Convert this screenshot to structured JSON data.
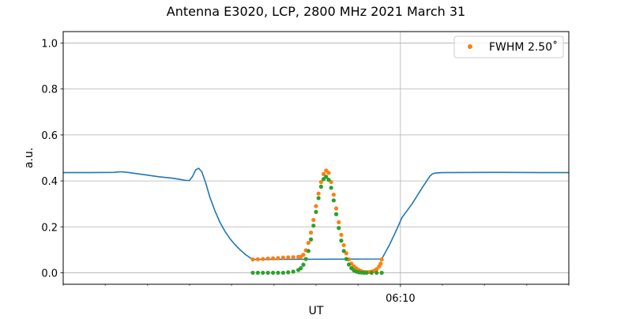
{
  "chart_data": {
    "type": "line",
    "title": "Antenna E3020, LCP, 2800 MHz 2021 March 31",
    "xlabel": "UT",
    "ylabel": "a.u.",
    "xlim": [
      0,
      1
    ],
    "ylim": [
      -0.05,
      1.05
    ],
    "grid": true,
    "legend_position": "top-right",
    "y_ticks": [
      0.0,
      0.2,
      0.4,
      0.6,
      0.8,
      1.0
    ],
    "y_tick_labels": [
      "0.0",
      "0.2",
      "0.4",
      "0.6",
      "0.8",
      "1.0"
    ],
    "x_major_ticks": [
      {
        "x": 0.667,
        "label": "06:10"
      }
    ],
    "x_minor_ticks": [
      0.0,
      0.083,
      0.167,
      0.25,
      0.333,
      0.417,
      0.5,
      0.583,
      0.75,
      0.833,
      0.917,
      1.0
    ],
    "colors": {
      "blue": "#1f77b4",
      "orange": "#ff7f0e",
      "green": "#2ca02c",
      "grid": "#b0b0b0"
    },
    "series": [
      {
        "name": "",
        "kind": "line",
        "color": "#1f77b4",
        "points": [
          [
            0.0,
            0.436
          ],
          [
            0.05,
            0.436
          ],
          [
            0.1,
            0.437
          ],
          [
            0.115,
            0.44
          ],
          [
            0.13,
            0.436
          ],
          [
            0.16,
            0.427
          ],
          [
            0.19,
            0.418
          ],
          [
            0.215,
            0.412
          ],
          [
            0.232,
            0.406
          ],
          [
            0.243,
            0.402
          ],
          [
            0.25,
            0.402
          ],
          [
            0.256,
            0.42
          ],
          [
            0.262,
            0.448
          ],
          [
            0.268,
            0.455
          ],
          [
            0.274,
            0.44
          ],
          [
            0.282,
            0.39
          ],
          [
            0.29,
            0.33
          ],
          [
            0.3,
            0.27
          ],
          [
            0.31,
            0.22
          ],
          [
            0.32,
            0.18
          ],
          [
            0.33,
            0.148
          ],
          [
            0.34,
            0.122
          ],
          [
            0.35,
            0.1
          ],
          [
            0.36,
            0.08
          ],
          [
            0.37,
            0.065
          ],
          [
            0.375,
            0.058
          ],
          [
            0.63,
            0.06
          ],
          [
            0.645,
            0.12
          ],
          [
            0.66,
            0.19
          ],
          [
            0.67,
            0.24
          ],
          [
            0.69,
            0.3
          ],
          [
            0.71,
            0.37
          ],
          [
            0.725,
            0.42
          ],
          [
            0.73,
            0.43
          ],
          [
            0.735,
            0.434
          ],
          [
            0.75,
            0.436
          ],
          [
            0.85,
            0.437
          ],
          [
            0.95,
            0.436
          ],
          [
            1.0,
            0.436
          ]
        ]
      },
      {
        "name": "FWHM 2.50˚",
        "kind": "points",
        "color": "#ff7f0e",
        "points": [
          [
            0.375,
            0.058
          ],
          [
            0.385,
            0.059
          ],
          [
            0.395,
            0.06
          ],
          [
            0.405,
            0.062
          ],
          [
            0.415,
            0.063
          ],
          [
            0.425,
            0.064
          ],
          [
            0.435,
            0.066
          ],
          [
            0.445,
            0.067
          ],
          [
            0.455,
            0.068
          ],
          [
            0.465,
            0.069
          ],
          [
            0.47,
            0.07
          ],
          [
            0.475,
            0.078
          ],
          [
            0.48,
            0.098
          ],
          [
            0.485,
            0.13
          ],
          [
            0.49,
            0.175
          ],
          [
            0.495,
            0.23
          ],
          [
            0.5,
            0.29
          ],
          [
            0.505,
            0.345
          ],
          [
            0.51,
            0.395
          ],
          [
            0.515,
            0.43
          ],
          [
            0.52,
            0.445
          ],
          [
            0.525,
            0.435
          ],
          [
            0.53,
            0.395
          ],
          [
            0.535,
            0.34
          ],
          [
            0.54,
            0.28
          ],
          [
            0.545,
            0.22
          ],
          [
            0.55,
            0.165
          ],
          [
            0.555,
            0.12
          ],
          [
            0.56,
            0.085
          ],
          [
            0.565,
            0.058
          ],
          [
            0.57,
            0.04
          ],
          [
            0.575,
            0.028
          ],
          [
            0.58,
            0.019
          ],
          [
            0.585,
            0.012
          ],
          [
            0.59,
            0.007
          ],
          [
            0.595,
            0.004
          ],
          [
            0.6,
            0.003
          ],
          [
            0.605,
            0.003
          ],
          [
            0.61,
            0.005
          ],
          [
            0.615,
            0.009
          ],
          [
            0.62,
            0.016
          ],
          [
            0.625,
            0.028
          ],
          [
            0.628,
            0.04
          ],
          [
            0.63,
            0.058
          ]
        ]
      },
      {
        "name": "",
        "kind": "points",
        "color": "#2ca02c",
        "points": [
          [
            0.375,
            0.0
          ],
          [
            0.385,
            0.0
          ],
          [
            0.395,
            0.0
          ],
          [
            0.405,
            0.0
          ],
          [
            0.415,
            0.0
          ],
          [
            0.425,
            0.0
          ],
          [
            0.435,
            0.0
          ],
          [
            0.445,
            0.002
          ],
          [
            0.455,
            0.005
          ],
          [
            0.465,
            0.012
          ],
          [
            0.47,
            0.02
          ],
          [
            0.475,
            0.035
          ],
          [
            0.48,
            0.06
          ],
          [
            0.485,
            0.095
          ],
          [
            0.49,
            0.145
          ],
          [
            0.495,
            0.205
          ],
          [
            0.5,
            0.265
          ],
          [
            0.505,
            0.325
          ],
          [
            0.51,
            0.375
          ],
          [
            0.515,
            0.408
          ],
          [
            0.52,
            0.418
          ],
          [
            0.525,
            0.405
          ],
          [
            0.53,
            0.37
          ],
          [
            0.535,
            0.315
          ],
          [
            0.54,
            0.255
          ],
          [
            0.545,
            0.195
          ],
          [
            0.55,
            0.14
          ],
          [
            0.555,
            0.095
          ],
          [
            0.56,
            0.06
          ],
          [
            0.565,
            0.036
          ],
          [
            0.57,
            0.02
          ],
          [
            0.575,
            0.01
          ],
          [
            0.58,
            0.005
          ],
          [
            0.585,
            0.002
          ],
          [
            0.59,
            0.001
          ],
          [
            0.595,
            0.0
          ],
          [
            0.6,
            0.0
          ],
          [
            0.61,
            0.0
          ],
          [
            0.62,
            0.0
          ],
          [
            0.63,
            0.0
          ]
        ]
      }
    ]
  }
}
